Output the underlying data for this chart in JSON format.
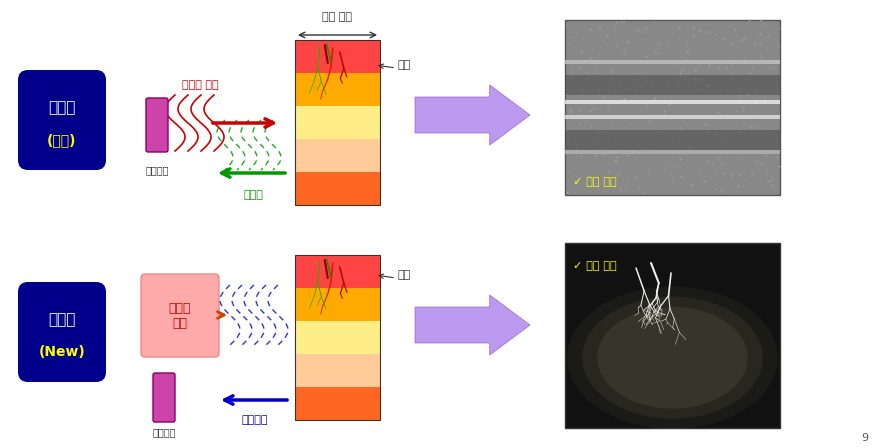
{
  "bg_color": "#ffffff",
  "box1_text_line1": "초음파",
  "box1_text_line2": "(기존)",
  "box2_text_line1": "광음향",
  "box2_text_line2": "(New)",
  "box_color": "#00008B",
  "box_text_color1": "#ffffff",
  "box_text_color2": "#ffff00",
  "label_transducer": "트랜듀서",
  "label_ultrasound_pulse": "초음파 펄스",
  "label_reflected_wave": "반사파",
  "label_layer_tissue": "층상 조직",
  "label_blood_vessel": "혈관",
  "label_laser_pulse": "레이저\n펄스",
  "label_transducer2": "트랜듀서",
  "label_photoacoustic_wave": "광음향파",
  "label_layer_structure": "층상 구조",
  "label_vessel_structure": "혈관 구조",
  "arrow_color_pulse": "#cc0000",
  "arrow_color_reflected": "#009900",
  "arrow_color_photo": "#0000cc",
  "tissue_colors": [
    "#ff0000",
    "#ffaa00",
    "#ffff99",
    "#ffcc88",
    "#ff6600"
  ],
  "page_number": "9"
}
